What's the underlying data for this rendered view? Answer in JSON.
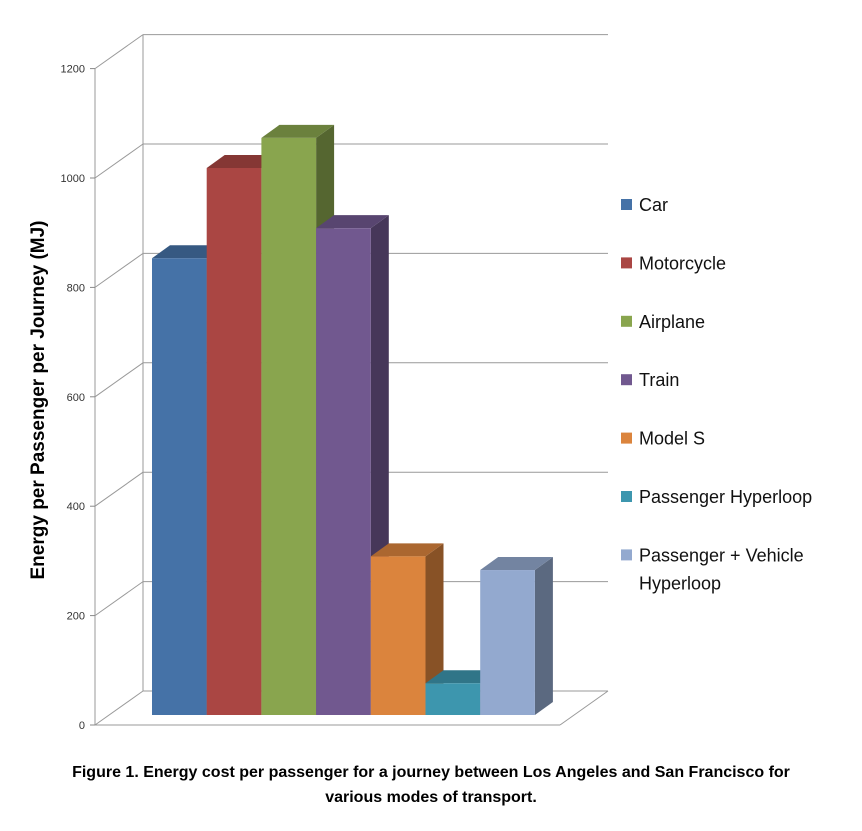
{
  "chart_data": {
    "type": "bar",
    "style": "3d-column",
    "categories": [
      "Car",
      "Motorcycle",
      "Airplane",
      "Train",
      "Model S",
      "Passenger Hyperloop",
      "Passenger + Vehicle Hyperloop"
    ],
    "values": [
      835,
      1000,
      1055,
      890,
      290,
      58,
      265
    ],
    "colors": [
      "#4572a7",
      "#aa4643",
      "#89a54e",
      "#71588f",
      "#db843d",
      "#3d96ae",
      "#93a9cf"
    ],
    "ylabel": "Energy per Passenger per Journey (MJ)",
    "ylim": [
      0,
      1200
    ],
    "yticks": [
      "0",
      "200",
      "400",
      "600",
      "800",
      "1000",
      "1200"
    ],
    "grid": true,
    "legend": {
      "position": "right",
      "entries": [
        {
          "lines": [
            "Car"
          ]
        },
        {
          "lines": [
            "Motorcycle"
          ]
        },
        {
          "lines": [
            "Airplane"
          ]
        },
        {
          "lines": [
            "Train"
          ]
        },
        {
          "lines": [
            "Model S"
          ]
        },
        {
          "lines": [
            "Passenger Hyperloop"
          ]
        },
        {
          "lines": [
            "Passenger + Vehicle",
            "Hyperloop"
          ]
        }
      ]
    }
  },
  "caption": {
    "line1": "Figure 1. Energy cost per passenger for a journey between Los Angeles and San Francisco for",
    "line2": "various modes of transport."
  }
}
